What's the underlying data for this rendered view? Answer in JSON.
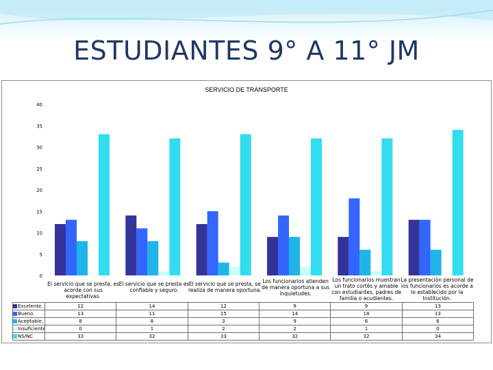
{
  "slide_title": "ESTUDIANTES 9° A  11° JM",
  "chart_data": {
    "type": "bar",
    "title": "SERVICIO DE TRANSPORTE",
    "ylim": [
      0,
      40
    ],
    "yticks": [
      0,
      5,
      10,
      15,
      20,
      25,
      30,
      35,
      40
    ],
    "categories": [
      "El servicio que se presta, es acorde con sus expectativas.",
      "El servicio que se presta es confiable y seguro.",
      "El servicio que se presta, se realiza de manera oportuna.",
      "Los funcionarios atienden de manera oportuna a sus inquietudes.",
      "Los funcionarios muestran un trato cortés y amable con estudiantes, padres de familia o acudientes.",
      "La presentación personal de los funcionarios es acorde a lo establecido por la Institución."
    ],
    "series": [
      {
        "name": "Excelente.",
        "color": "#333399",
        "values": [
          12,
          14,
          12,
          9,
          9,
          13
        ]
      },
      {
        "name": "Bueno.",
        "color": "#3366ff",
        "values": [
          13,
          11,
          15,
          14,
          18,
          13
        ]
      },
      {
        "name": "Aceptable.",
        "color": "#1fb5e8",
        "values": [
          8,
          8,
          3,
          9,
          6,
          6
        ]
      },
      {
        "name": "Insuficiente.",
        "color": "#ccffff",
        "values": [
          0,
          1,
          2,
          2,
          1,
          0
        ]
      },
      {
        "name": "NS/NC",
        "color": "#33ddf0",
        "values": [
          33,
          32,
          33,
          32,
          32,
          34
        ]
      }
    ],
    "legend": "table-left",
    "grid": false
  }
}
